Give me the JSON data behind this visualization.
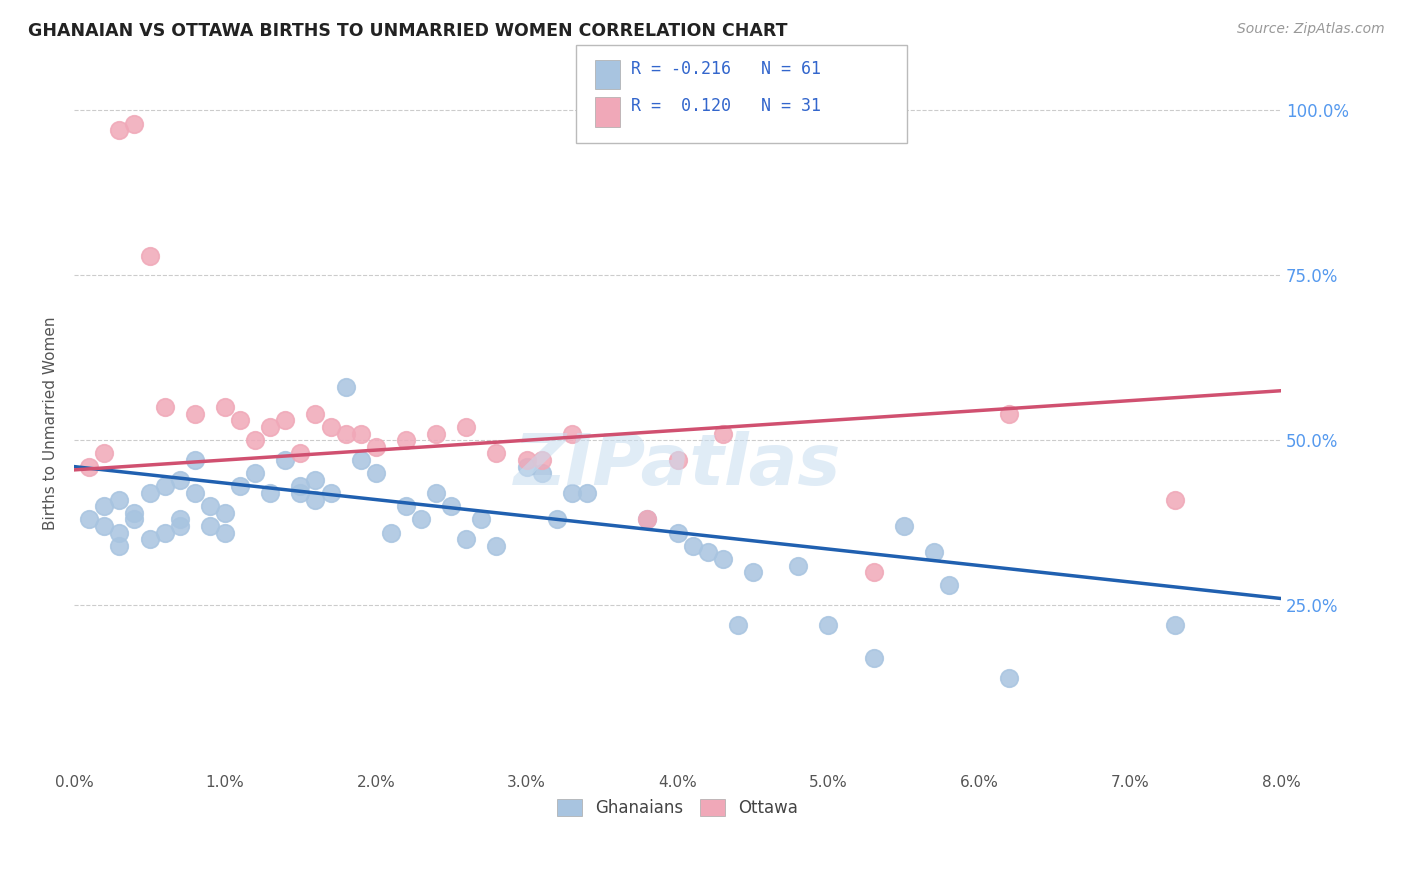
{
  "title": "GHANAIAN VS OTTAWA BIRTHS TO UNMARRIED WOMEN CORRELATION CHART",
  "source": "Source: ZipAtlas.com",
  "ylabel": "Births to Unmarried Women",
  "ytick_vals": [
    0.25,
    0.5,
    0.75,
    1.0
  ],
  "legend_labels": [
    "Ghanaians",
    "Ottawa"
  ],
  "ghanaian_color": "#a8c4e0",
  "ottawa_color": "#f0a8b8",
  "trend_ghanaian_color": "#2060b0",
  "trend_ottawa_color": "#d05070",
  "background_color": "#ffffff",
  "watermark_color": "#c8ddf0",
  "ghanaian_x": [
    0.001,
    0.002,
    0.002,
    0.003,
    0.003,
    0.003,
    0.004,
    0.004,
    0.005,
    0.005,
    0.006,
    0.006,
    0.007,
    0.007,
    0.007,
    0.008,
    0.008,
    0.009,
    0.009,
    0.01,
    0.01,
    0.011,
    0.012,
    0.013,
    0.014,
    0.015,
    0.015,
    0.016,
    0.016,
    0.017,
    0.018,
    0.019,
    0.02,
    0.021,
    0.022,
    0.023,
    0.024,
    0.025,
    0.026,
    0.027,
    0.028,
    0.03,
    0.031,
    0.032,
    0.033,
    0.034,
    0.038,
    0.04,
    0.041,
    0.042,
    0.043,
    0.044,
    0.045,
    0.048,
    0.05,
    0.053,
    0.055,
    0.057,
    0.058,
    0.062,
    0.073
  ],
  "ghanaian_y": [
    0.38,
    0.4,
    0.37,
    0.41,
    0.36,
    0.34,
    0.39,
    0.38,
    0.42,
    0.35,
    0.43,
    0.36,
    0.44,
    0.37,
    0.38,
    0.42,
    0.47,
    0.37,
    0.4,
    0.39,
    0.36,
    0.43,
    0.45,
    0.42,
    0.47,
    0.43,
    0.42,
    0.44,
    0.41,
    0.42,
    0.58,
    0.47,
    0.45,
    0.36,
    0.4,
    0.38,
    0.42,
    0.4,
    0.35,
    0.38,
    0.34,
    0.46,
    0.45,
    0.38,
    0.42,
    0.42,
    0.38,
    0.36,
    0.34,
    0.33,
    0.32,
    0.22,
    0.3,
    0.31,
    0.22,
    0.17,
    0.37,
    0.33,
    0.28,
    0.14,
    0.22
  ],
  "ottawa_x": [
    0.001,
    0.002,
    0.003,
    0.004,
    0.005,
    0.006,
    0.008,
    0.01,
    0.011,
    0.012,
    0.013,
    0.014,
    0.015,
    0.016,
    0.017,
    0.018,
    0.019,
    0.02,
    0.022,
    0.024,
    0.026,
    0.028,
    0.03,
    0.031,
    0.033,
    0.038,
    0.04,
    0.043,
    0.053,
    0.062,
    0.073
  ],
  "ottawa_y": [
    0.46,
    0.48,
    0.97,
    0.98,
    0.78,
    0.55,
    0.54,
    0.55,
    0.53,
    0.5,
    0.52,
    0.53,
    0.48,
    0.54,
    0.52,
    0.51,
    0.51,
    0.49,
    0.5,
    0.51,
    0.52,
    0.48,
    0.47,
    0.47,
    0.51,
    0.38,
    0.47,
    0.51,
    0.3,
    0.54,
    0.41
  ],
  "xmin": 0.0,
  "xmax": 0.08,
  "ymin": 0.0,
  "ymax": 1.05,
  "trend_ghanaian_x0": 0.0,
  "trend_ghanaian_y0": 0.46,
  "trend_ghanaian_x1": 0.08,
  "trend_ghanaian_y1": 0.26,
  "trend_ottawa_x0": 0.0,
  "trend_ottawa_y0": 0.455,
  "trend_ottawa_x1": 0.08,
  "trend_ottawa_y1": 0.575
}
